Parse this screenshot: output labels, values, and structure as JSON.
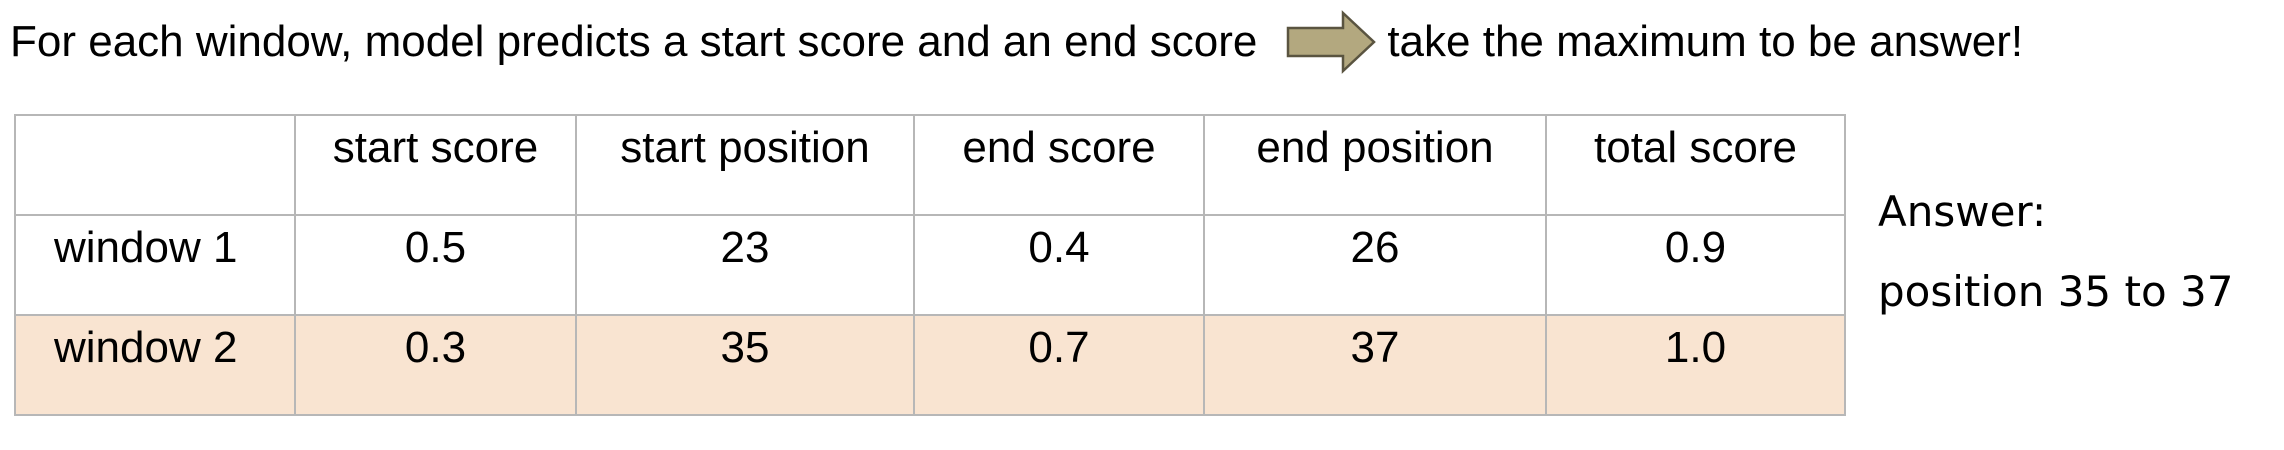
{
  "headline": {
    "text_before": "For each window, model predicts a start score and an end score",
    "text_after": "take the maximum to be answer!",
    "arrow_icon": "right-arrow-icon",
    "arrow_color": "#b3a87f",
    "arrow_outline": "#5a5440"
  },
  "table": {
    "columns": [
      "",
      "start score",
      "start position",
      "end score",
      "end position",
      "total score"
    ],
    "rows": [
      {
        "label": "window 1",
        "cells": [
          "0.5",
          "23",
          "0.4",
          "26",
          "0.9"
        ],
        "highlighted": false
      },
      {
        "label": "window 2",
        "cells": [
          "0.3",
          "35",
          "0.7",
          "37",
          "1.0"
        ],
        "highlighted": true
      }
    ],
    "highlight_color": "#f9e4d1",
    "border_color": "#b7b7b7"
  },
  "answer": {
    "label": "Answer:",
    "value": "position 35 to 37"
  }
}
